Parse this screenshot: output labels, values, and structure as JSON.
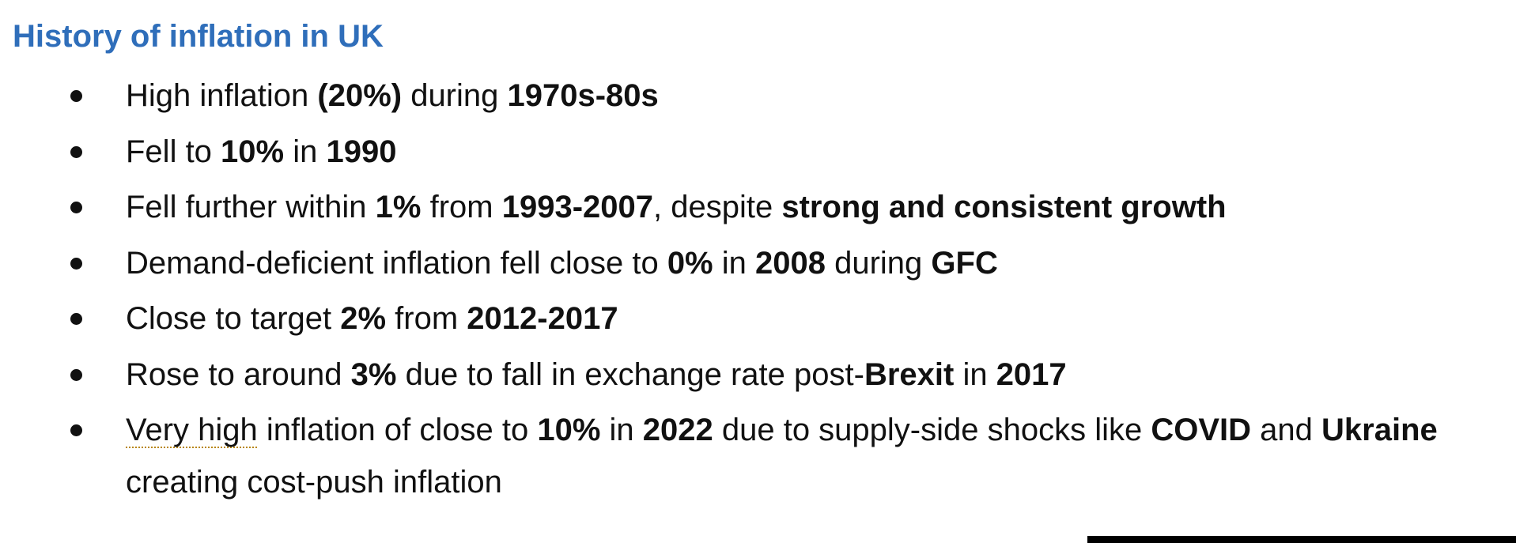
{
  "heading": "History of inflation in UK",
  "bullets": [
    {
      "segments": [
        {
          "text": "High inflation ",
          "bold": false
        },
        {
          "text": "(20%)",
          "bold": true
        },
        {
          "text": " during ",
          "bold": false
        },
        {
          "text": "1970s-80s",
          "bold": true
        }
      ]
    },
    {
      "segments": [
        {
          "text": "Fell to ",
          "bold": false
        },
        {
          "text": "10%",
          "bold": true
        },
        {
          "text": " in ",
          "bold": false
        },
        {
          "text": "1990",
          "bold": true
        }
      ]
    },
    {
      "segments": [
        {
          "text": "Fell further within ",
          "bold": false
        },
        {
          "text": "1%",
          "bold": true
        },
        {
          "text": " from ",
          "bold": false
        },
        {
          "text": "1993-2007",
          "bold": true
        },
        {
          "text": ", despite ",
          "bold": false
        },
        {
          "text": "strong and consistent growth",
          "bold": true
        }
      ]
    },
    {
      "segments": [
        {
          "text": "Demand-deficient inflation fell close to ",
          "bold": false
        },
        {
          "text": "0%",
          "bold": true
        },
        {
          "text": " in ",
          "bold": false
        },
        {
          "text": "2008",
          "bold": true
        },
        {
          "text": " during ",
          "bold": false
        },
        {
          "text": "GFC",
          "bold": true
        }
      ]
    },
    {
      "segments": [
        {
          "text": "Close to target ",
          "bold": false
        },
        {
          "text": "2%",
          "bold": true
        },
        {
          "text": " from ",
          "bold": false
        },
        {
          "text": "2012-2017",
          "bold": true
        }
      ]
    },
    {
      "segments": [
        {
          "text": "Rose to around ",
          "bold": false
        },
        {
          "text": "3%",
          "bold": true
        },
        {
          "text": " due to fall in exchange rate post-",
          "bold": false
        },
        {
          "text": "Brexit",
          "bold": true
        },
        {
          "text": " in ",
          "bold": false
        },
        {
          "text": "2017",
          "bold": true
        }
      ]
    },
    {
      "segments": [
        {
          "text": "Very high",
          "bold": false,
          "spellcheck": true
        },
        {
          "text": " inflation of close to ",
          "bold": false
        },
        {
          "text": "10%",
          "bold": true
        },
        {
          "text": " in ",
          "bold": false
        },
        {
          "text": "2022",
          "bold": true
        },
        {
          "text": " due to supply-side shocks like ",
          "bold": false
        },
        {
          "text": "COVID",
          "bold": true
        },
        {
          "text": " and ",
          "bold": false
        },
        {
          "text": "Ukraine",
          "bold": true
        },
        {
          "text": " creating cost-push inflation",
          "bold": false
        }
      ]
    }
  ]
}
